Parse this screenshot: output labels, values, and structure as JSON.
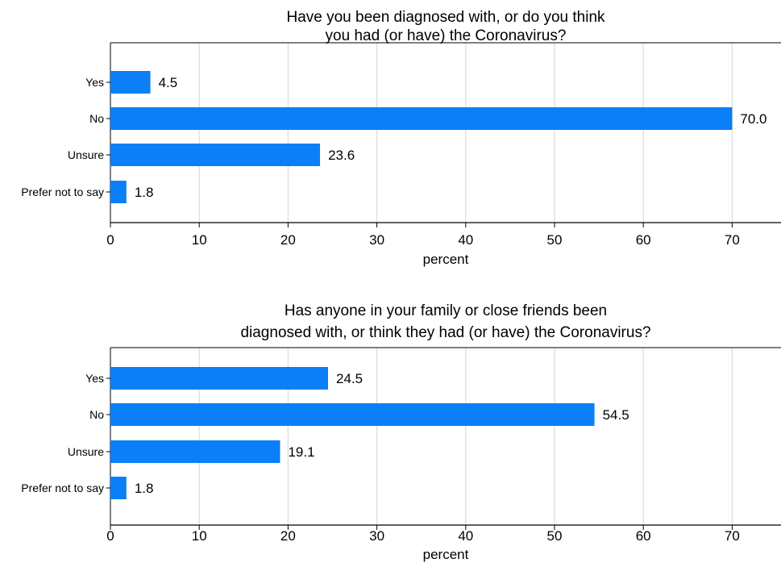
{
  "chart_data": [
    {
      "type": "bar",
      "orientation": "horizontal",
      "title_lines": [
        "Have you been diagnosed with, or do you think",
        "you had (or have) the Coronavirus?"
      ],
      "categories": [
        "Yes",
        "No",
        "Unsure",
        "Prefer not to say"
      ],
      "values": [
        4.5,
        70.0,
        23.6,
        1.8
      ],
      "value_labels": [
        "4.5",
        "70.0",
        "23.6",
        "1.8"
      ],
      "xlabel": "percent",
      "ylabel": "",
      "xlim": [
        0,
        75.5
      ],
      "xticks": [
        0,
        10,
        20,
        30,
        40,
        50,
        60,
        70
      ],
      "grid": "vertical",
      "bar_color": "#0a7ff7"
    },
    {
      "type": "bar",
      "orientation": "horizontal",
      "title_lines": [
        "Has anyone in your family or close friends been",
        "diagnosed with, or think they had (or have) the Coronavirus?"
      ],
      "categories": [
        "Yes",
        "No",
        "Unsure",
        "Prefer not to say"
      ],
      "values": [
        24.5,
        54.5,
        19.1,
        1.8
      ],
      "value_labels": [
        "24.5",
        "54.5",
        "19.1",
        "1.8"
      ],
      "xlabel": "percent",
      "ylabel": "",
      "xlim": [
        0,
        75.5
      ],
      "xticks": [
        0,
        10,
        20,
        30,
        40,
        50,
        60,
        70
      ],
      "grid": "vertical",
      "bar_color": "#0a7ff7"
    }
  ]
}
